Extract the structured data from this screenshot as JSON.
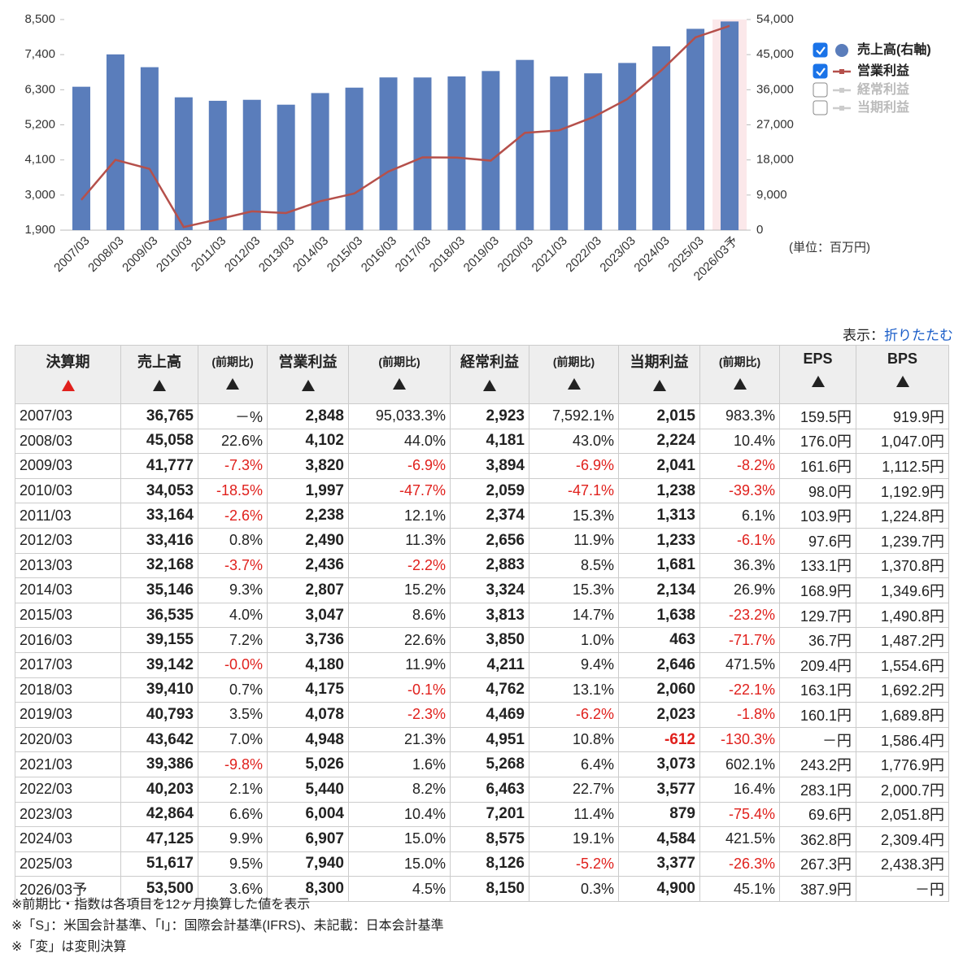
{
  "chart_data": {
    "type": "combo",
    "categories": [
      "2007/03",
      "2008/03",
      "2009/03",
      "2010/03",
      "2011/03",
      "2012/03",
      "2013/03",
      "2014/03",
      "2015/03",
      "2016/03",
      "2017/03",
      "2018/03",
      "2019/03",
      "2020/03",
      "2021/03",
      "2022/03",
      "2023/03",
      "2024/03",
      "2025/03",
      "2026/03予"
    ],
    "series": [
      {
        "name": "売上高(右軸)",
        "type": "bar",
        "axis": "y2",
        "color": "#5a7dbb",
        "checked": true,
        "values": [
          36765,
          45058,
          41777,
          34053,
          33164,
          33416,
          32168,
          35146,
          36535,
          39155,
          39142,
          39410,
          40793,
          43642,
          39386,
          40203,
          42864,
          47125,
          51617,
          53500
        ]
      },
      {
        "name": "営業利益",
        "type": "line",
        "axis": "y",
        "color": "#b5504b",
        "checked": true,
        "values": [
          2848,
          4102,
          3820,
          1997,
          2238,
          2490,
          2436,
          2807,
          3047,
          3736,
          4180,
          4175,
          4078,
          4948,
          5026,
          5440,
          6004,
          6907,
          7940,
          8300
        ]
      }
    ],
    "hidden_series": [
      {
        "name": "経常利益",
        "color": "#cccccc",
        "checked": false
      },
      {
        "name": "当期利益",
        "color": "#cccccc",
        "checked": false
      }
    ],
    "ylim": [
      1900,
      8500
    ],
    "yticks": [
      {
        "value": 1900,
        "label": "1,900"
      },
      {
        "value": 3000,
        "label": "3,000"
      },
      {
        "value": 4100,
        "label": "4,100"
      },
      {
        "value": 5200,
        "label": "5,200"
      },
      {
        "value": 6300,
        "label": "6,300"
      },
      {
        "value": 7400,
        "label": "7,400"
      },
      {
        "value": 8500,
        "label": "8,500"
      }
    ],
    "y2lim": [
      0,
      54000
    ],
    "y2ticks": [
      0,
      {
        "value": 9000,
        "label": "9,000"
      },
      {
        "value": 18000,
        "label": "18,000"
      },
      {
        "value": 27000,
        "label": "27,000"
      },
      {
        "value": 36000,
        "label": "36,000"
      },
      {
        "value": 45000,
        "label": "45,000"
      },
      {
        "value": 54000,
        "label": "54,000"
      }
    ],
    "highlight_index": 19,
    "unit": "(単位：百万円)",
    "grid": false
  },
  "toggle": {
    "label": "表示：",
    "link": "折りたたむ"
  },
  "table": {
    "sort_index": 0,
    "header": [
      "決算期",
      "売上高",
      "(前期比)",
      "営業利益",
      "(前期比)",
      "経常利益",
      "(前期比)",
      "当期利益",
      "(前期比)",
      "EPS",
      "BPS"
    ],
    "rows": [
      [
        "2007/03",
        "36,765",
        "－%",
        "2,848",
        "95,033.3%",
        "2,923",
        "7,592.1%",
        "2,015",
        "983.3%",
        "159.5円",
        "919.9円"
      ],
      [
        "2008/03",
        "45,058",
        "22.6%",
        "4,102",
        "44.0%",
        "4,181",
        "43.0%",
        "2,224",
        "10.4%",
        "176.0円",
        "1,047.0円"
      ],
      [
        "2009/03",
        "41,777",
        "-7.3%",
        "3,820",
        "-6.9%",
        "3,894",
        "-6.9%",
        "2,041",
        "-8.2%",
        "161.6円",
        "1,112.5円"
      ],
      [
        "2010/03",
        "34,053",
        "-18.5%",
        "1,997",
        "-47.7%",
        "2,059",
        "-47.1%",
        "1,238",
        "-39.3%",
        "98.0円",
        "1,192.9円"
      ],
      [
        "2011/03",
        "33,164",
        "-2.6%",
        "2,238",
        "12.1%",
        "2,374",
        "15.3%",
        "1,313",
        "6.1%",
        "103.9円",
        "1,224.8円"
      ],
      [
        "2012/03",
        "33,416",
        "0.8%",
        "2,490",
        "11.3%",
        "2,656",
        "11.9%",
        "1,233",
        "-6.1%",
        "97.6円",
        "1,239.7円"
      ],
      [
        "2013/03",
        "32,168",
        "-3.7%",
        "2,436",
        "-2.2%",
        "2,883",
        "8.5%",
        "1,681",
        "36.3%",
        "133.1円",
        "1,370.8円"
      ],
      [
        "2014/03",
        "35,146",
        "9.3%",
        "2,807",
        "15.2%",
        "3,324",
        "15.3%",
        "2,134",
        "26.9%",
        "168.9円",
        "1,349.6円"
      ],
      [
        "2015/03",
        "36,535",
        "4.0%",
        "3,047",
        "8.6%",
        "3,813",
        "14.7%",
        "1,638",
        "-23.2%",
        "129.7円",
        "1,490.8円"
      ],
      [
        "2016/03",
        "39,155",
        "7.2%",
        "3,736",
        "22.6%",
        "3,850",
        "1.0%",
        "463",
        "-71.7%",
        "36.7円",
        "1,487.2円"
      ],
      [
        "2017/03",
        "39,142",
        "-0.0%",
        "4,180",
        "11.9%",
        "4,211",
        "9.4%",
        "2,646",
        "471.5%",
        "209.4円",
        "1,554.6円"
      ],
      [
        "2018/03",
        "39,410",
        "0.7%",
        "4,175",
        "-0.1%",
        "4,762",
        "13.1%",
        "2,060",
        "-22.1%",
        "163.1円",
        "1,692.2円"
      ],
      [
        "2019/03",
        "40,793",
        "3.5%",
        "4,078",
        "-2.3%",
        "4,469",
        "-6.2%",
        "2,023",
        "-1.8%",
        "160.1円",
        "1,689.8円"
      ],
      [
        "2020/03",
        "43,642",
        "7.0%",
        "4,948",
        "21.3%",
        "4,951",
        "10.8%",
        "-612",
        "-130.3%",
        "－円",
        "1,586.4円"
      ],
      [
        "2021/03",
        "39,386",
        "-9.8%",
        "5,026",
        "1.6%",
        "5,268",
        "6.4%",
        "3,073",
        "602.1%",
        "243.2円",
        "1,776.9円"
      ],
      [
        "2022/03",
        "40,203",
        "2.1%",
        "5,440",
        "8.2%",
        "6,463",
        "22.7%",
        "3,577",
        "16.4%",
        "283.1円",
        "2,000.7円"
      ],
      [
        "2023/03",
        "42,864",
        "6.6%",
        "6,004",
        "10.4%",
        "7,201",
        "11.4%",
        "879",
        "-75.4%",
        "69.6円",
        "2,051.8円"
      ],
      [
        "2024/03",
        "47,125",
        "9.9%",
        "6,907",
        "15.0%",
        "8,575",
        "19.1%",
        "4,584",
        "421.5%",
        "362.8円",
        "2,309.4円"
      ],
      [
        "2025/03",
        "51,617",
        "9.5%",
        "7,940",
        "15.0%",
        "8,126",
        "-5.2%",
        "3,377",
        "-26.3%",
        "267.3円",
        "2,438.3円"
      ],
      [
        "2026/03予",
        "53,500",
        "3.6%",
        "8,300",
        "4.5%",
        "8,150",
        "0.3%",
        "4,900",
        "45.1%",
        "387.9円",
        "－円"
      ]
    ]
  },
  "footnotes": [
    "※前期比・指数は各項目を12ヶ月換算した値を表示",
    "※「S」：米国会計基準、「I」：国際会計基準(IFRS)、未記載：日本会計基準",
    "※「変」は変則決算"
  ]
}
